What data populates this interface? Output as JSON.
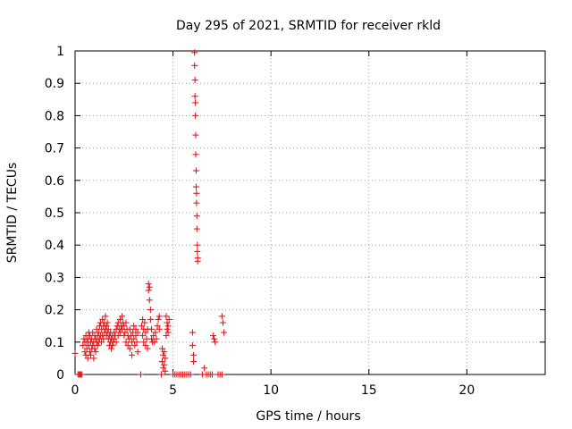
{
  "chart_data": {
    "type": "scatter",
    "title": "Day 295 of 2021, SRMTID for receiver rkld",
    "xlabel": "GPS time / hours",
    "ylabel": "SRMTID / TECUs",
    "xlim": [
      0,
      24
    ],
    "ylim": [
      0,
      1
    ],
    "xticks": [
      0,
      5,
      10,
      15,
      20
    ],
    "xtick_labels": [
      "0",
      "5",
      "10",
      "15",
      "20"
    ],
    "yticks": [
      0,
      0.1,
      0.2,
      0.3,
      0.4,
      0.5,
      0.6,
      0.7,
      0.8,
      0.9,
      1
    ],
    "ytick_labels": [
      "0",
      "0.1",
      "0.2",
      "0.3",
      "0.4",
      "0.5",
      "0.6",
      "0.7",
      "0.8",
      "0.9",
      "1"
    ],
    "grid": true,
    "marker": "plus",
    "color": "#e41a1c",
    "series": [
      {
        "name": "rkld",
        "points": [
          [
            0.0,
            0.065
          ],
          [
            0.15,
            0.0
          ],
          [
            0.2,
            0.0
          ],
          [
            0.25,
            0.0
          ],
          [
            0.3,
            0.0
          ],
          [
            0.35,
            0.0
          ],
          [
            0.4,
            0.09
          ],
          [
            0.45,
            0.11
          ],
          [
            0.5,
            0.07
          ],
          [
            0.5,
            0.1
          ],
          [
            0.55,
            0.06
          ],
          [
            0.55,
            0.12
          ],
          [
            0.6,
            0.08
          ],
          [
            0.6,
            0.1
          ],
          [
            0.65,
            0.11
          ],
          [
            0.65,
            0.05
          ],
          [
            0.7,
            0.09
          ],
          [
            0.7,
            0.13
          ],
          [
            0.75,
            0.07
          ],
          [
            0.75,
            0.12
          ],
          [
            0.8,
            0.1
          ],
          [
            0.8,
            0.06
          ],
          [
            0.85,
            0.11
          ],
          [
            0.85,
            0.08
          ],
          [
            0.9,
            0.13
          ],
          [
            0.9,
            0.09
          ],
          [
            0.95,
            0.05
          ],
          [
            0.95,
            0.1
          ],
          [
            1.0,
            0.12
          ],
          [
            1.0,
            0.08
          ],
          [
            1.05,
            0.11
          ],
          [
            1.05,
            0.07
          ],
          [
            1.1,
            0.14
          ],
          [
            1.1,
            0.1
          ],
          [
            1.15,
            0.09
          ],
          [
            1.15,
            0.12
          ],
          [
            1.2,
            0.13
          ],
          [
            1.2,
            0.1
          ],
          [
            1.25,
            0.15
          ],
          [
            1.25,
            0.11
          ],
          [
            1.3,
            0.12
          ],
          [
            1.3,
            0.16
          ],
          [
            1.35,
            0.1
          ],
          [
            1.35,
            0.14
          ],
          [
            1.4,
            0.17
          ],
          [
            1.4,
            0.12
          ],
          [
            1.45,
            0.15
          ],
          [
            1.45,
            0.11
          ],
          [
            1.5,
            0.16
          ],
          [
            1.5,
            0.13
          ],
          [
            1.55,
            0.18
          ],
          [
            1.55,
            0.14
          ],
          [
            1.6,
            0.15
          ],
          [
            1.6,
            0.12
          ],
          [
            1.65,
            0.16
          ],
          [
            1.65,
            0.13
          ],
          [
            1.7,
            0.14
          ],
          [
            1.7,
            0.11
          ],
          [
            1.75,
            0.12
          ],
          [
            1.75,
            0.09
          ],
          [
            1.8,
            0.1
          ],
          [
            1.8,
            0.13
          ],
          [
            1.85,
            0.11
          ],
          [
            1.85,
            0.08
          ],
          [
            1.9,
            0.12
          ],
          [
            1.9,
            0.09
          ],
          [
            1.95,
            0.1
          ],
          [
            2.0,
            0.13
          ],
          [
            2.0,
            0.11
          ],
          [
            2.05,
            0.12
          ],
          [
            2.1,
            0.14
          ],
          [
            2.1,
            0.1
          ],
          [
            2.15,
            0.15
          ],
          [
            2.2,
            0.16
          ],
          [
            2.2,
            0.12
          ],
          [
            2.25,
            0.14
          ],
          [
            2.3,
            0.17
          ],
          [
            2.3,
            0.13
          ],
          [
            2.35,
            0.15
          ],
          [
            2.4,
            0.18
          ],
          [
            2.4,
            0.14
          ],
          [
            2.45,
            0.16
          ],
          [
            2.5,
            0.15
          ],
          [
            2.5,
            0.12
          ],
          [
            2.55,
            0.13
          ],
          [
            2.6,
            0.16
          ],
          [
            2.6,
            0.1
          ],
          [
            2.65,
            0.14
          ],
          [
            2.7,
            0.12
          ],
          [
            2.7,
            0.09
          ],
          [
            2.75,
            0.11
          ],
          [
            2.8,
            0.14
          ],
          [
            2.8,
            0.08
          ],
          [
            2.85,
            0.12
          ],
          [
            2.9,
            0.1
          ],
          [
            2.9,
            0.06
          ],
          [
            2.95,
            0.13
          ],
          [
            3.0,
            0.15
          ],
          [
            3.0,
            0.11
          ],
          [
            3.05,
            0.09
          ],
          [
            3.1,
            0.12
          ],
          [
            3.1,
            0.14
          ],
          [
            3.15,
            0.1
          ],
          [
            3.2,
            0.07
          ],
          [
            3.2,
            0.13
          ],
          [
            3.35,
            0.0
          ],
          [
            3.4,
            0.15
          ],
          [
            3.45,
            0.17
          ],
          [
            3.45,
            0.12
          ],
          [
            3.5,
            0.14
          ],
          [
            3.5,
            0.1
          ],
          [
            3.55,
            0.16
          ],
          [
            3.6,
            0.13
          ],
          [
            3.6,
            0.09
          ],
          [
            3.65,
            0.11
          ],
          [
            3.7,
            0.08
          ],
          [
            3.7,
            0.14
          ],
          [
            3.75,
            0.28
          ],
          [
            3.75,
            0.26
          ],
          [
            3.8,
            0.27
          ],
          [
            3.8,
            0.23
          ],
          [
            3.85,
            0.2
          ],
          [
            3.85,
            0.17
          ],
          [
            3.9,
            0.14
          ],
          [
            3.9,
            0.11
          ],
          [
            3.95,
            0.1
          ],
          [
            4.0,
            0.12
          ],
          [
            4.05,
            0.1
          ],
          [
            4.1,
            0.13
          ],
          [
            4.15,
            0.11
          ],
          [
            4.2,
            0.15
          ],
          [
            4.25,
            0.17
          ],
          [
            4.3,
            0.18
          ],
          [
            4.3,
            0.14
          ],
          [
            4.4,
            0.0
          ],
          [
            4.45,
            0.04
          ],
          [
            4.45,
            0.08
          ],
          [
            4.5,
            0.06
          ],
          [
            4.5,
            0.02
          ],
          [
            4.55,
            0.07
          ],
          [
            4.55,
            0.03
          ],
          [
            4.6,
            0.05
          ],
          [
            4.6,
            0.01
          ],
          [
            4.65,
            0.18
          ],
          [
            4.65,
            0.12
          ],
          [
            4.7,
            0.16
          ],
          [
            4.7,
            0.14
          ],
          [
            4.75,
            0.15
          ],
          [
            4.75,
            0.13
          ],
          [
            4.8,
            0.17
          ],
          [
            5.0,
            0.0
          ],
          [
            5.1,
            0.0
          ],
          [
            5.2,
            0.0
          ],
          [
            5.3,
            0.0
          ],
          [
            5.4,
            0.0
          ],
          [
            5.5,
            0.0
          ],
          [
            5.6,
            0.0
          ],
          [
            5.7,
            0.0
          ],
          [
            5.8,
            0.0
          ],
          [
            5.9,
            0.0
          ],
          [
            6.0,
            0.13
          ],
          [
            6.0,
            0.09
          ],
          [
            6.05,
            0.06
          ],
          [
            6.05,
            0.04
          ],
          [
            6.1,
            0.995
          ],
          [
            6.1,
            0.955
          ],
          [
            6.12,
            0.91
          ],
          [
            6.12,
            0.86
          ],
          [
            6.14,
            0.84
          ],
          [
            6.14,
            0.8
          ],
          [
            6.16,
            0.74
          ],
          [
            6.16,
            0.68
          ],
          [
            6.18,
            0.63
          ],
          [
            6.18,
            0.58
          ],
          [
            6.2,
            0.56
          ],
          [
            6.2,
            0.53
          ],
          [
            6.22,
            0.49
          ],
          [
            6.22,
            0.45
          ],
          [
            6.24,
            0.4
          ],
          [
            6.24,
            0.38
          ],
          [
            6.26,
            0.36
          ],
          [
            6.26,
            0.35
          ],
          [
            6.5,
            0.0
          ],
          [
            6.6,
            0.02
          ],
          [
            6.7,
            0.0
          ],
          [
            6.8,
            0.0
          ],
          [
            6.9,
            0.0
          ],
          [
            7.0,
            0.0
          ],
          [
            7.05,
            0.12
          ],
          [
            7.1,
            0.11
          ],
          [
            7.15,
            0.1
          ],
          [
            7.3,
            0.0
          ],
          [
            7.4,
            0.0
          ],
          [
            7.5,
            0.0
          ],
          [
            7.5,
            0.18
          ],
          [
            7.55,
            0.16
          ],
          [
            7.6,
            0.13
          ]
        ]
      }
    ]
  }
}
